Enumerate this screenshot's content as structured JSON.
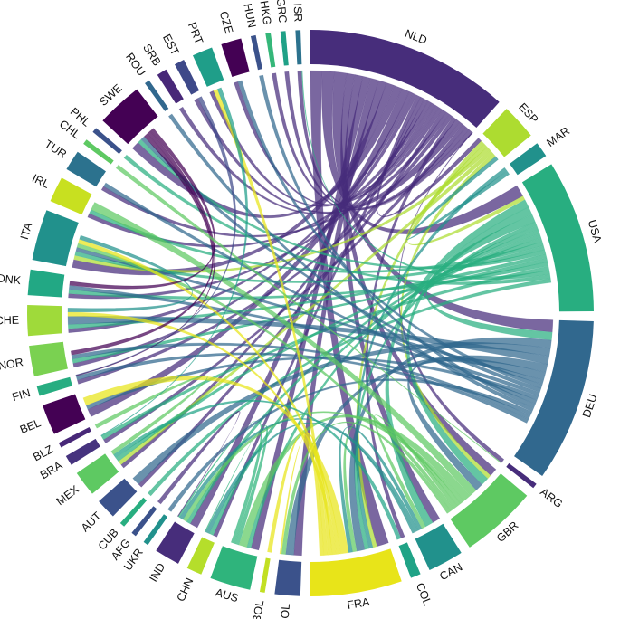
{
  "diagram": {
    "type": "chord",
    "palette": {
      "dark_purple": "#440154",
      "purple": "#472d7b",
      "indigo": "#3b528b",
      "blue": "#2c728e",
      "teal": "#21918c",
      "green_teal": "#28ae80",
      "green": "#5ec962",
      "lime": "#addc30",
      "yellow": "#e8e419"
    },
    "sectors": [
      {
        "id": "NLD",
        "label": "NLD",
        "weight": 40,
        "color": "#472d7b"
      },
      {
        "id": "ESP",
        "label": "ESP",
        "weight": 7,
        "color": "#addc30"
      },
      {
        "id": "MAR",
        "label": "MAR",
        "weight": 3,
        "color": "#21918c"
      },
      {
        "id": "USA",
        "label": "USA",
        "weight": 30,
        "color": "#28ae80"
      },
      {
        "id": "DEU",
        "label": "DEU",
        "weight": 32,
        "color": "#31688e"
      },
      {
        "id": "ARG",
        "label": "ARG",
        "weight": 1,
        "color": "#472d7b"
      },
      {
        "id": "GBR",
        "label": "GBR",
        "weight": 15,
        "color": "#5ec962"
      },
      {
        "id": "CAN",
        "label": "CAN",
        "weight": 7,
        "color": "#21918c"
      },
      {
        "id": "COL",
        "label": "COL",
        "weight": 2,
        "color": "#20a386"
      },
      {
        "id": "FRA",
        "label": "FRA",
        "weight": 18,
        "color": "#e8e419"
      },
      {
        "id": "POL",
        "label": "POL",
        "weight": 5,
        "color": "#3b528b"
      },
      {
        "id": "BOL",
        "label": "BOL",
        "weight": 1,
        "color": "#c2df23"
      },
      {
        "id": "AUS",
        "label": "AUS",
        "weight": 8,
        "color": "#2fb47c"
      },
      {
        "id": "CHN",
        "label": "CHN",
        "weight": 3,
        "color": "#b5de2b"
      },
      {
        "id": "IND",
        "label": "IND",
        "weight": 5,
        "color": "#472d7b"
      },
      {
        "id": "UKR",
        "label": "UKR",
        "weight": 1,
        "color": "#21918c"
      },
      {
        "id": "AFG",
        "label": "AFG",
        "weight": 1,
        "color": "#3b528b"
      },
      {
        "id": "CUB",
        "label": "CUB",
        "weight": 1,
        "color": "#28ae80"
      },
      {
        "id": "AUT",
        "label": "AUT",
        "weight": 4,
        "color": "#3b528b"
      },
      {
        "id": "MEX",
        "label": "MEX",
        "weight": 5,
        "color": "#5ec962"
      },
      {
        "id": "BRA",
        "label": "BRA",
        "weight": 2,
        "color": "#46337e"
      },
      {
        "id": "BLZ",
        "label": "BLZ",
        "weight": 1,
        "color": "#482878"
      },
      {
        "id": "BEL",
        "label": "BEL",
        "weight": 6,
        "color": "#440154"
      },
      {
        "id": "FIN",
        "label": "FIN",
        "weight": 2,
        "color": "#27ad81"
      },
      {
        "id": "NOR",
        "label": "NOR",
        "weight": 6,
        "color": "#7ad151"
      },
      {
        "id": "CHE",
        "label": "CHE",
        "weight": 6,
        "color": "#9fda3a"
      },
      {
        "id": "DNK",
        "label": "DNK",
        "weight": 5,
        "color": "#22a884"
      },
      {
        "id": "ITA",
        "label": "ITA",
        "weight": 10,
        "color": "#21918c"
      },
      {
        "id": "IRL",
        "label": "IRL",
        "weight": 5,
        "color": "#c8e020"
      },
      {
        "id": "TUR",
        "label": "TUR",
        "weight": 4,
        "color": "#2c728e"
      },
      {
        "id": "CHL",
        "label": "CHL",
        "weight": 1,
        "color": "#5ec962"
      },
      {
        "id": "PHL",
        "label": "PHL",
        "weight": 1,
        "color": "#3b528b"
      },
      {
        "id": "SWE",
        "label": "SWE",
        "weight": 9,
        "color": "#440154"
      },
      {
        "id": "ROU",
        "label": "ROU",
        "weight": 1,
        "color": "#31688e"
      },
      {
        "id": "SRB",
        "label": "SRB",
        "weight": 2,
        "color": "#482878"
      },
      {
        "id": "EST",
        "label": "EST",
        "weight": 2,
        "color": "#3e4989"
      },
      {
        "id": "PRT",
        "label": "PRT",
        "weight": 4,
        "color": "#1f9e89"
      },
      {
        "id": "CZE",
        "label": "CZE",
        "weight": 4,
        "color": "#440154"
      },
      {
        "id": "HUN",
        "label": "HUN",
        "weight": 1,
        "color": "#3b528b"
      },
      {
        "id": "HKG",
        "label": "HKG",
        "weight": 1,
        "color": "#35b779"
      },
      {
        "id": "GRC",
        "label": "GRC",
        "weight": 1,
        "color": "#1fa187"
      },
      {
        "id": "ISR",
        "label": "ISR",
        "weight": 1,
        "color": "#2c728e"
      }
    ],
    "links": [
      {
        "from": "NLD",
        "to": "FRA",
        "value": 3
      },
      {
        "from": "NLD",
        "to": "USA",
        "value": 3
      },
      {
        "from": "NLD",
        "to": "DEU",
        "value": 3
      },
      {
        "from": "NLD",
        "to": "GBR",
        "value": 2
      },
      {
        "from": "NLD",
        "to": "CAN",
        "value": 2
      },
      {
        "from": "NLD",
        "to": "AUS",
        "value": 2
      },
      {
        "from": "NLD",
        "to": "POL",
        "value": 2
      },
      {
        "from": "NLD",
        "to": "IND",
        "value": 2
      },
      {
        "from": "NLD",
        "to": "ITA",
        "value": 2
      },
      {
        "from": "NLD",
        "to": "SWE",
        "value": 2
      },
      {
        "from": "NLD",
        "to": "BEL",
        "value": 2
      },
      {
        "from": "NLD",
        "to": "CHE",
        "value": 1
      },
      {
        "from": "NLD",
        "to": "NOR",
        "value": 1
      },
      {
        "from": "NLD",
        "to": "ESP",
        "value": 1
      },
      {
        "from": "NLD",
        "to": "CHN",
        "value": 1
      },
      {
        "from": "NLD",
        "to": "MEX",
        "value": 1
      },
      {
        "from": "NLD",
        "to": "IRL",
        "value": 1
      },
      {
        "from": "NLD",
        "to": "DNK",
        "value": 1
      },
      {
        "from": "NLD",
        "to": "PRT",
        "value": 1
      },
      {
        "from": "NLD",
        "to": "CZE",
        "value": 1
      },
      {
        "from": "NLD",
        "to": "AUT",
        "value": 1
      },
      {
        "from": "NLD",
        "to": "TUR",
        "value": 1
      },
      {
        "from": "NLD",
        "to": "FIN",
        "value": 1
      },
      {
        "from": "NLD",
        "to": "COL",
        "value": 1
      },
      {
        "from": "NLD",
        "to": "SRB",
        "value": 1
      },
      {
        "from": "NLD",
        "to": "EST",
        "value": 1
      },
      {
        "from": "NLD",
        "to": "BRA",
        "value": 1
      },
      {
        "from": "NLD",
        "to": "ISR",
        "value": 1
      },
      {
        "from": "NLD",
        "to": "HKG",
        "value": 1
      },
      {
        "from": "NLD",
        "to": "GRC",
        "value": 1
      },
      {
        "from": "NLD",
        "to": "ARG",
        "value": 1
      },
      {
        "from": "ESP",
        "to": "FRA",
        "value": 1
      },
      {
        "from": "ESP",
        "to": "USA",
        "value": 1
      },
      {
        "from": "ESP",
        "to": "ITA",
        "value": 1
      },
      {
        "from": "ESP",
        "to": "MEX",
        "value": 1
      },
      {
        "from": "ESP",
        "to": "GBR",
        "value": 1
      },
      {
        "from": "MAR",
        "to": "FRA",
        "value": 1
      },
      {
        "from": "MAR",
        "to": "ESP",
        "value": 1
      },
      {
        "from": "USA",
        "to": "CAN",
        "value": 2
      },
      {
        "from": "USA",
        "to": "GBR",
        "value": 2
      },
      {
        "from": "USA",
        "to": "DEU",
        "value": 2
      },
      {
        "from": "USA",
        "to": "FRA",
        "value": 1
      },
      {
        "from": "USA",
        "to": "AUS",
        "value": 1
      },
      {
        "from": "USA",
        "to": "IND",
        "value": 1
      },
      {
        "from": "USA",
        "to": "CHN",
        "value": 1
      },
      {
        "from": "USA",
        "to": "MEX",
        "value": 1
      },
      {
        "from": "USA",
        "to": "IRL",
        "value": 1
      },
      {
        "from": "USA",
        "to": "ITA",
        "value": 1
      },
      {
        "from": "USA",
        "to": "SWE",
        "value": 1
      },
      {
        "from": "USA",
        "to": "CHE",
        "value": 1
      },
      {
        "from": "USA",
        "to": "NOR",
        "value": 1
      },
      {
        "from": "USA",
        "to": "DNK",
        "value": 1
      },
      {
        "from": "USA",
        "to": "BRA",
        "value": 1
      },
      {
        "from": "USA",
        "to": "ISR",
        "value": 1
      },
      {
        "from": "USA",
        "to": "PHL",
        "value": 1
      },
      {
        "from": "USA",
        "to": "CUB",
        "value": 1
      },
      {
        "from": "DEU",
        "to": "FRA",
        "value": 2
      },
      {
        "from": "DEU",
        "to": "AUT",
        "value": 2
      },
      {
        "from": "DEU",
        "to": "CHE",
        "value": 2
      },
      {
        "from": "DEU",
        "to": "POL",
        "value": 2
      },
      {
        "from": "DEU",
        "to": "GBR",
        "value": 2
      },
      {
        "from": "DEU",
        "to": "ITA",
        "value": 1
      },
      {
        "from": "DEU",
        "to": "CZE",
        "value": 1
      },
      {
        "from": "DEU",
        "to": "SWE",
        "value": 1
      },
      {
        "from": "DEU",
        "to": "DNK",
        "value": 1
      },
      {
        "from": "DEU",
        "to": "BEL",
        "value": 1
      },
      {
        "from": "DEU",
        "to": "TUR",
        "value": 1
      },
      {
        "from": "DEU",
        "to": "HUN",
        "value": 1
      },
      {
        "from": "DEU",
        "to": "ROU",
        "value": 1
      },
      {
        "from": "DEU",
        "to": "UKR",
        "value": 1
      },
      {
        "from": "DEU",
        "to": "NOR",
        "value": 1
      },
      {
        "from": "DEU",
        "to": "FIN",
        "value": 1
      },
      {
        "from": "GBR",
        "to": "IRL",
        "value": 2
      },
      {
        "from": "GBR",
        "to": "AUS",
        "value": 2
      },
      {
        "from": "GBR",
        "to": "IND",
        "value": 1
      },
      {
        "from": "GBR",
        "to": "FRA",
        "value": 1
      },
      {
        "from": "GBR",
        "to": "CAN",
        "value": 1
      },
      {
        "from": "GBR",
        "to": "ITA",
        "value": 1
      },
      {
        "from": "GBR",
        "to": "POL",
        "value": 1
      },
      {
        "from": "CAN",
        "to": "FRA",
        "value": 1
      },
      {
        "from": "CAN",
        "to": "IND",
        "value": 1
      },
      {
        "from": "CAN",
        "to": "CHN",
        "value": 1
      },
      {
        "from": "FRA",
        "to": "BEL",
        "value": 2
      },
      {
        "from": "FRA",
        "to": "ITA",
        "value": 1
      },
      {
        "from": "FRA",
        "to": "CHE",
        "value": 1
      },
      {
        "from": "FRA",
        "to": "POL",
        "value": 1
      },
      {
        "from": "FRA",
        "to": "PRT",
        "value": 1
      },
      {
        "from": "FRA",
        "to": "BOL",
        "value": 1
      },
      {
        "from": "COL",
        "to": "MEX",
        "value": 1
      },
      {
        "from": "AUS",
        "to": "CHN",
        "value": 1
      },
      {
        "from": "AUS",
        "to": "IND",
        "value": 1
      },
      {
        "from": "SWE",
        "to": "NOR",
        "value": 1
      },
      {
        "from": "SWE",
        "to": "FIN",
        "value": 1
      },
      {
        "from": "SWE",
        "to": "DNK",
        "value": 1
      },
      {
        "from": "ITA",
        "to": "CHE",
        "value": 1
      },
      {
        "from": "IND",
        "to": "AFG",
        "value": 1
      },
      {
        "from": "MEX",
        "to": "BLZ",
        "value": 1
      },
      {
        "from": "CHL",
        "to": "ARG",
        "value": 1
      },
      {
        "from": "EST",
        "to": "FIN",
        "value": 1
      },
      {
        "from": "PRT",
        "to": "BRA",
        "value": 1
      }
    ]
  }
}
